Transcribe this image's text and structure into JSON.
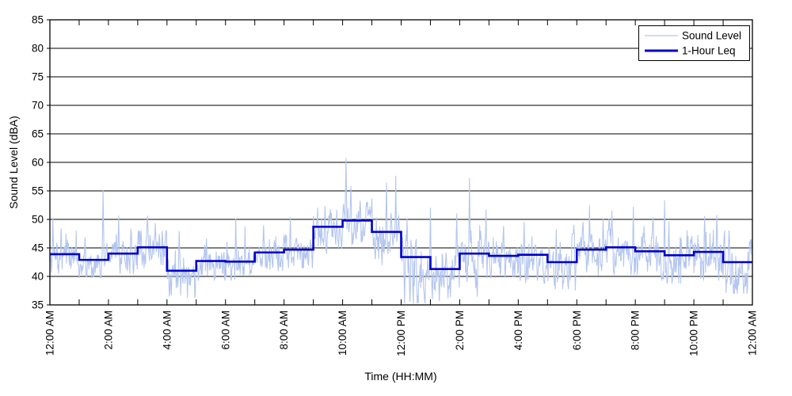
{
  "chart_data": {
    "type": "line",
    "title": "",
    "xlabel": "Time (HH:MM)",
    "ylabel": "Sound Level (dBA)",
    "x_axis": {
      "unit": "hours",
      "min_hour": 0,
      "max_hour": 24,
      "labeled_tick_every_hours": 2,
      "minor_tick_every_hours": 1,
      "tick_labels": [
        "12:00 AM",
        "2:00 AM",
        "4:00 AM",
        "6:00 AM",
        "8:00 AM",
        "10:00 AM",
        "12:00 PM",
        "2:00 PM",
        "4:00 PM",
        "6:00 PM",
        "8:00 PM",
        "10:00 PM",
        "12:00 AM"
      ]
    },
    "y_axis": {
      "min": 35,
      "max": 85,
      "tick_interval": 5,
      "tick_values": [
        35,
        40,
        45,
        50,
        55,
        60,
        65,
        70,
        75,
        80,
        85
      ],
      "gridlines": true,
      "gridline_color": "#000000"
    },
    "legend": {
      "position": "top-right",
      "entries": [
        {
          "label": "Sound Level",
          "color": "#b4c6ef",
          "line_width": 1.2
        },
        {
          "label": "1-Hour Leq",
          "color": "#0000cc",
          "line_width": 3
        }
      ]
    },
    "series": [
      {
        "name": "1-Hour Leq",
        "type": "step",
        "color": "#0000cc",
        "hours": [
          0,
          1,
          2,
          3,
          4,
          5,
          6,
          7,
          8,
          9,
          10,
          11,
          12,
          13,
          14,
          15,
          16,
          17,
          18,
          19,
          20,
          21,
          22,
          23
        ],
        "hourly_leq_dba": [
          43.9,
          42.9,
          44.0,
          45.1,
          41.0,
          42.7,
          42.6,
          44.2,
          44.7,
          48.7,
          49.8,
          47.8,
          43.4,
          41.3,
          44.0,
          43.6,
          43.8,
          42.5,
          44.7,
          45.1,
          44.4,
          43.7,
          44.3,
          42.5
        ]
      },
      {
        "name": "Sound Level",
        "type": "noisy-line",
        "color": "#b4c6ef",
        "sampling_minutes": 1,
        "seed": 1234,
        "hourly_envelope": [
          {
            "hour": 0,
            "center": 43.2,
            "sigma": 1.5,
            "min": 40.3,
            "max": 48.0
          },
          {
            "hour": 1,
            "center": 42.2,
            "sigma": 1.5,
            "min": 39.8,
            "max": 47.0
          },
          {
            "hour": 2,
            "center": 43.2,
            "sigma": 1.5,
            "min": 40.5,
            "max": 47.5
          },
          {
            "hour": 3,
            "center": 44.3,
            "sigma": 1.5,
            "min": 41.5,
            "max": 48.0
          },
          {
            "hour": 4,
            "center": 40.0,
            "sigma": 1.6,
            "min": 36.3,
            "max": 44.5
          },
          {
            "hour": 5,
            "center": 42.0,
            "sigma": 1.4,
            "min": 39.3,
            "max": 45.5
          },
          {
            "hour": 6,
            "center": 42.0,
            "sigma": 1.6,
            "min": 39.3,
            "max": 46.5
          },
          {
            "hour": 7,
            "center": 43.4,
            "sigma": 1.5,
            "min": 41.0,
            "max": 47.0
          },
          {
            "hour": 8,
            "center": 44.1,
            "sigma": 1.5,
            "min": 41.5,
            "max": 47.5
          },
          {
            "hour": 9,
            "center": 47.2,
            "sigma": 1.8,
            "min": 43.5,
            "max": 52.0
          },
          {
            "hour": 10,
            "center": 49.2,
            "sigma": 1.6,
            "min": 44.5,
            "max": 53.0
          },
          {
            "hour": 11,
            "center": 46.3,
            "sigma": 2.0,
            "min": 42.0,
            "max": 52.0
          },
          {
            "hour": 12,
            "center": 40.8,
            "sigma": 2.8,
            "min": 35.3,
            "max": 48.0
          },
          {
            "hour": 13,
            "center": 40.3,
            "sigma": 2.4,
            "min": 35.5,
            "max": 47.0
          },
          {
            "hour": 14,
            "center": 43.2,
            "sigma": 2.2,
            "min": 38.0,
            "max": 50.0
          },
          {
            "hour": 15,
            "center": 42.8,
            "sigma": 1.8,
            "min": 39.0,
            "max": 48.0
          },
          {
            "hour": 16,
            "center": 43.0,
            "sigma": 1.9,
            "min": 38.8,
            "max": 48.5
          },
          {
            "hour": 17,
            "center": 41.8,
            "sigma": 1.9,
            "min": 37.8,
            "max": 47.5
          },
          {
            "hour": 18,
            "center": 44.0,
            "sigma": 1.9,
            "min": 40.0,
            "max": 49.5
          },
          {
            "hour": 19,
            "center": 44.3,
            "sigma": 1.9,
            "min": 40.3,
            "max": 50.0
          },
          {
            "hour": 20,
            "center": 43.5,
            "sigma": 2.0,
            "min": 39.3,
            "max": 50.0
          },
          {
            "hour": 21,
            "center": 42.8,
            "sigma": 2.2,
            "min": 38.8,
            "max": 50.0
          },
          {
            "hour": 22,
            "center": 43.5,
            "sigma": 2.0,
            "min": 39.3,
            "max": 49.5
          },
          {
            "hour": 23,
            "center": 41.5,
            "sigma": 2.2,
            "min": 37.0,
            "max": 48.0
          }
        ],
        "spikes_hour_dba": [
          [
            0.1,
            50.2
          ],
          [
            0.38,
            48.4
          ],
          [
            1.2,
            46.8
          ],
          [
            1.82,
            55.1
          ],
          [
            2.35,
            50.6
          ],
          [
            2.77,
            48.3
          ],
          [
            3.33,
            50.6
          ],
          [
            3.6,
            49.3
          ],
          [
            4.42,
            47.9
          ],
          [
            5.35,
            46.6
          ],
          [
            6.35,
            50.1
          ],
          [
            6.67,
            48.7
          ],
          [
            7.3,
            48.9
          ],
          [
            8.22,
            50.3
          ],
          [
            9.4,
            52.3
          ],
          [
            9.8,
            51.6
          ],
          [
            10.12,
            60.7
          ],
          [
            10.28,
            55.8
          ],
          [
            10.6,
            53.2
          ],
          [
            11.0,
            53.6
          ],
          [
            11.5,
            56.4
          ],
          [
            11.82,
            57.6
          ],
          [
            12.2,
            50.0
          ],
          [
            13.0,
            52.0
          ],
          [
            13.9,
            51.0
          ],
          [
            14.34,
            57.2
          ],
          [
            14.9,
            51.7
          ],
          [
            15.5,
            48.8
          ],
          [
            16.2,
            49.5
          ],
          [
            17.3,
            48.2
          ],
          [
            17.9,
            49.0
          ],
          [
            18.43,
            52.4
          ],
          [
            18.9,
            50.0
          ],
          [
            19.2,
            51.5
          ],
          [
            19.93,
            52.2
          ],
          [
            20.6,
            50.3
          ],
          [
            21.0,
            53.3
          ],
          [
            22.37,
            50.5
          ],
          [
            22.78,
            50.7
          ],
          [
            23.2,
            48.0
          ]
        ],
        "dips_hour_dba": [
          [
            4.08,
            36.5
          ],
          [
            4.7,
            36.3
          ],
          [
            12.3,
            35.6
          ],
          [
            12.55,
            35.4
          ],
          [
            12.8,
            35.8
          ],
          [
            13.3,
            35.7
          ],
          [
            13.6,
            36.2
          ],
          [
            14.6,
            36.5
          ],
          [
            17.95,
            37.6
          ],
          [
            21.1,
            38.9
          ],
          [
            23.1,
            37.2
          ],
          [
            23.35,
            37.0
          ]
        ]
      }
    ]
  }
}
